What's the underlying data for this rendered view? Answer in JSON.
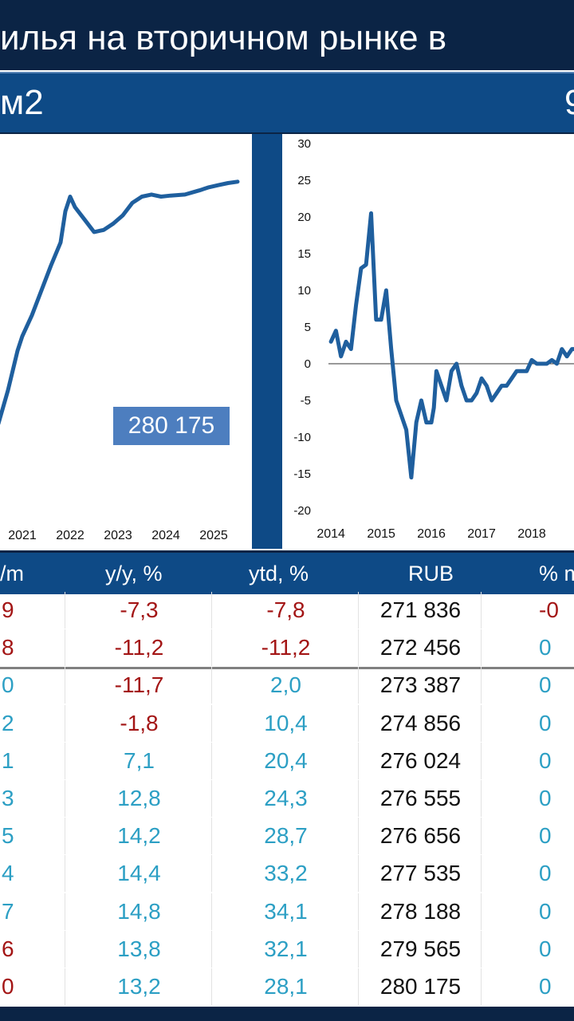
{
  "title": "илья на вторичном рынке в",
  "subtitle_left": "м2",
  "subtitle_right": "9",
  "chart_data": [
    {
      "type": "line",
      "x": [
        "2020.4",
        "2020.6",
        "2020.8",
        "2021.0",
        "2021.1",
        "2021.3",
        "2021.5",
        "2021.7",
        "2021.9",
        "2022.0",
        "2022.1",
        "2022.2",
        "2022.4",
        "2022.6",
        "2022.8",
        "2023.0",
        "2023.2",
        "2023.4",
        "2023.6",
        "2023.8",
        "2024.0",
        "2024.2",
        "2024.5",
        "2024.8",
        "2025.0",
        "2025.2",
        "2025.4",
        "2025.6"
      ],
      "y_values": [
        160000,
        164000,
        180000,
        199000,
        206000,
        216000,
        228000,
        240000,
        251000,
        266000,
        273000,
        268000,
        262000,
        256000,
        257000,
        260000,
        264000,
        270000,
        273000,
        274000,
        273000,
        273500,
        274000,
        276000,
        277500,
        278500,
        279500,
        280175
      ],
      "x_ticks": [
        "2021",
        "2022",
        "2023",
        "2024",
        "2025"
      ],
      "annotation": "280 175"
    },
    {
      "type": "line",
      "x": [
        2014.0,
        2014.1,
        2014.2,
        2014.3,
        2014.4,
        2014.5,
        2014.6,
        2014.7,
        2014.8,
        2014.9,
        2015.0,
        2015.1,
        2015.2,
        2015.3,
        2015.4,
        2015.5,
        2015.6,
        2015.7,
        2015.8,
        2015.9,
        2016.0,
        2016.05,
        2016.1,
        2016.2,
        2016.3,
        2016.4,
        2016.5,
        2016.6,
        2016.7,
        2016.8,
        2016.9,
        2017.0,
        2017.1,
        2017.2,
        2017.3,
        2017.4,
        2017.5,
        2017.6,
        2017.7,
        2017.8,
        2017.9,
        2018.0,
        2018.1,
        2018.2,
        2018.3,
        2018.4,
        2018.5,
        2018.6,
        2018.7,
        2018.8,
        2018.9
      ],
      "y": [
        3,
        4.5,
        1,
        3,
        2,
        8,
        13,
        13.5,
        20.5,
        6,
        6,
        10,
        2,
        -5,
        -7,
        -9,
        -15.5,
        -8,
        -5,
        -8,
        -8,
        -6,
        -1,
        -3,
        -5,
        -1,
        0,
        -3,
        -5,
        -5,
        -4,
        -2,
        -3,
        -5,
        -4,
        -3,
        -3,
        -2,
        -1,
        -1,
        -1,
        0.5,
        0,
        0,
        0,
        0.5,
        0,
        2,
        1,
        2,
        2
      ],
      "x_ticks": [
        "2014",
        "2015",
        "2016",
        "2017",
        "2018"
      ],
      "y_ticks": [
        "30",
        "25",
        "20",
        "15",
        "10",
        "5",
        "0",
        "-5",
        "-10",
        "-15",
        "-20"
      ],
      "ylim": [
        -20,
        30
      ]
    }
  ],
  "table": {
    "headers": [
      "/m",
      "y/y, %",
      "ytd, %",
      "RUB",
      "% m"
    ],
    "rows": [
      {
        "c0": "9",
        "c0_color": "red",
        "yy": "-7,3",
        "yy_color": "red",
        "ytd": "-7,8",
        "ytd_color": "red",
        "rub": "271 836",
        "pm": "-0",
        "pm_color": "red"
      },
      {
        "c0": "8",
        "c0_color": "red",
        "yy": "-11,2",
        "yy_color": "red",
        "ytd": "-11,2",
        "ytd_color": "red",
        "rub": "272 456",
        "pm": "0",
        "pm_color": "blue"
      },
      {
        "c0": "0",
        "c0_color": "blue",
        "yy": "-11,7",
        "yy_color": "red",
        "ytd": "2,0",
        "ytd_color": "blue",
        "rub": "273 387",
        "pm": "0",
        "pm_color": "blue"
      },
      {
        "c0": "2",
        "c0_color": "blue",
        "yy": "-1,8",
        "yy_color": "red",
        "ytd": "10,4",
        "ytd_color": "blue",
        "rub": "274 856",
        "pm": "0",
        "pm_color": "blue"
      },
      {
        "c0": "1",
        "c0_color": "blue",
        "yy": "7,1",
        "yy_color": "blue",
        "ytd": "20,4",
        "ytd_color": "blue",
        "rub": "276 024",
        "pm": "0",
        "pm_color": "blue"
      },
      {
        "c0": "3",
        "c0_color": "blue",
        "yy": "12,8",
        "yy_color": "blue",
        "ytd": "24,3",
        "ytd_color": "blue",
        "rub": "276 555",
        "pm": "0",
        "pm_color": "blue"
      },
      {
        "c0": "5",
        "c0_color": "blue",
        "yy": "14,2",
        "yy_color": "blue",
        "ytd": "28,7",
        "ytd_color": "blue",
        "rub": "276 656",
        "pm": "0",
        "pm_color": "blue"
      },
      {
        "c0": "4",
        "c0_color": "blue",
        "yy": "14,4",
        "yy_color": "blue",
        "ytd": "33,2",
        "ytd_color": "blue",
        "rub": "277 535",
        "pm": "0",
        "pm_color": "blue"
      },
      {
        "c0": "7",
        "c0_color": "blue",
        "yy": "14,8",
        "yy_color": "blue",
        "ytd": "34,1",
        "ytd_color": "blue",
        "rub": "278 188",
        "pm": "0",
        "pm_color": "blue"
      },
      {
        "c0": "6",
        "c0_color": "red",
        "yy": "13,8",
        "yy_color": "blue",
        "ytd": "32,1",
        "ytd_color": "blue",
        "rub": "279 565",
        "pm": "0",
        "pm_color": "blue"
      },
      {
        "c0": "0",
        "c0_color": "red",
        "yy": "13,2",
        "yy_color": "blue",
        "ytd": "28,1",
        "ytd_color": "blue",
        "rub": "280 175",
        "pm": "0",
        "pm_color": "blue"
      }
    ]
  },
  "colors": {
    "navy": "#0b2445",
    "blue": "#0e4a86",
    "line": "#1f5f9e",
    "red": "#a31515",
    "teal": "#2c9fc4",
    "label": "#4d7ebf"
  }
}
